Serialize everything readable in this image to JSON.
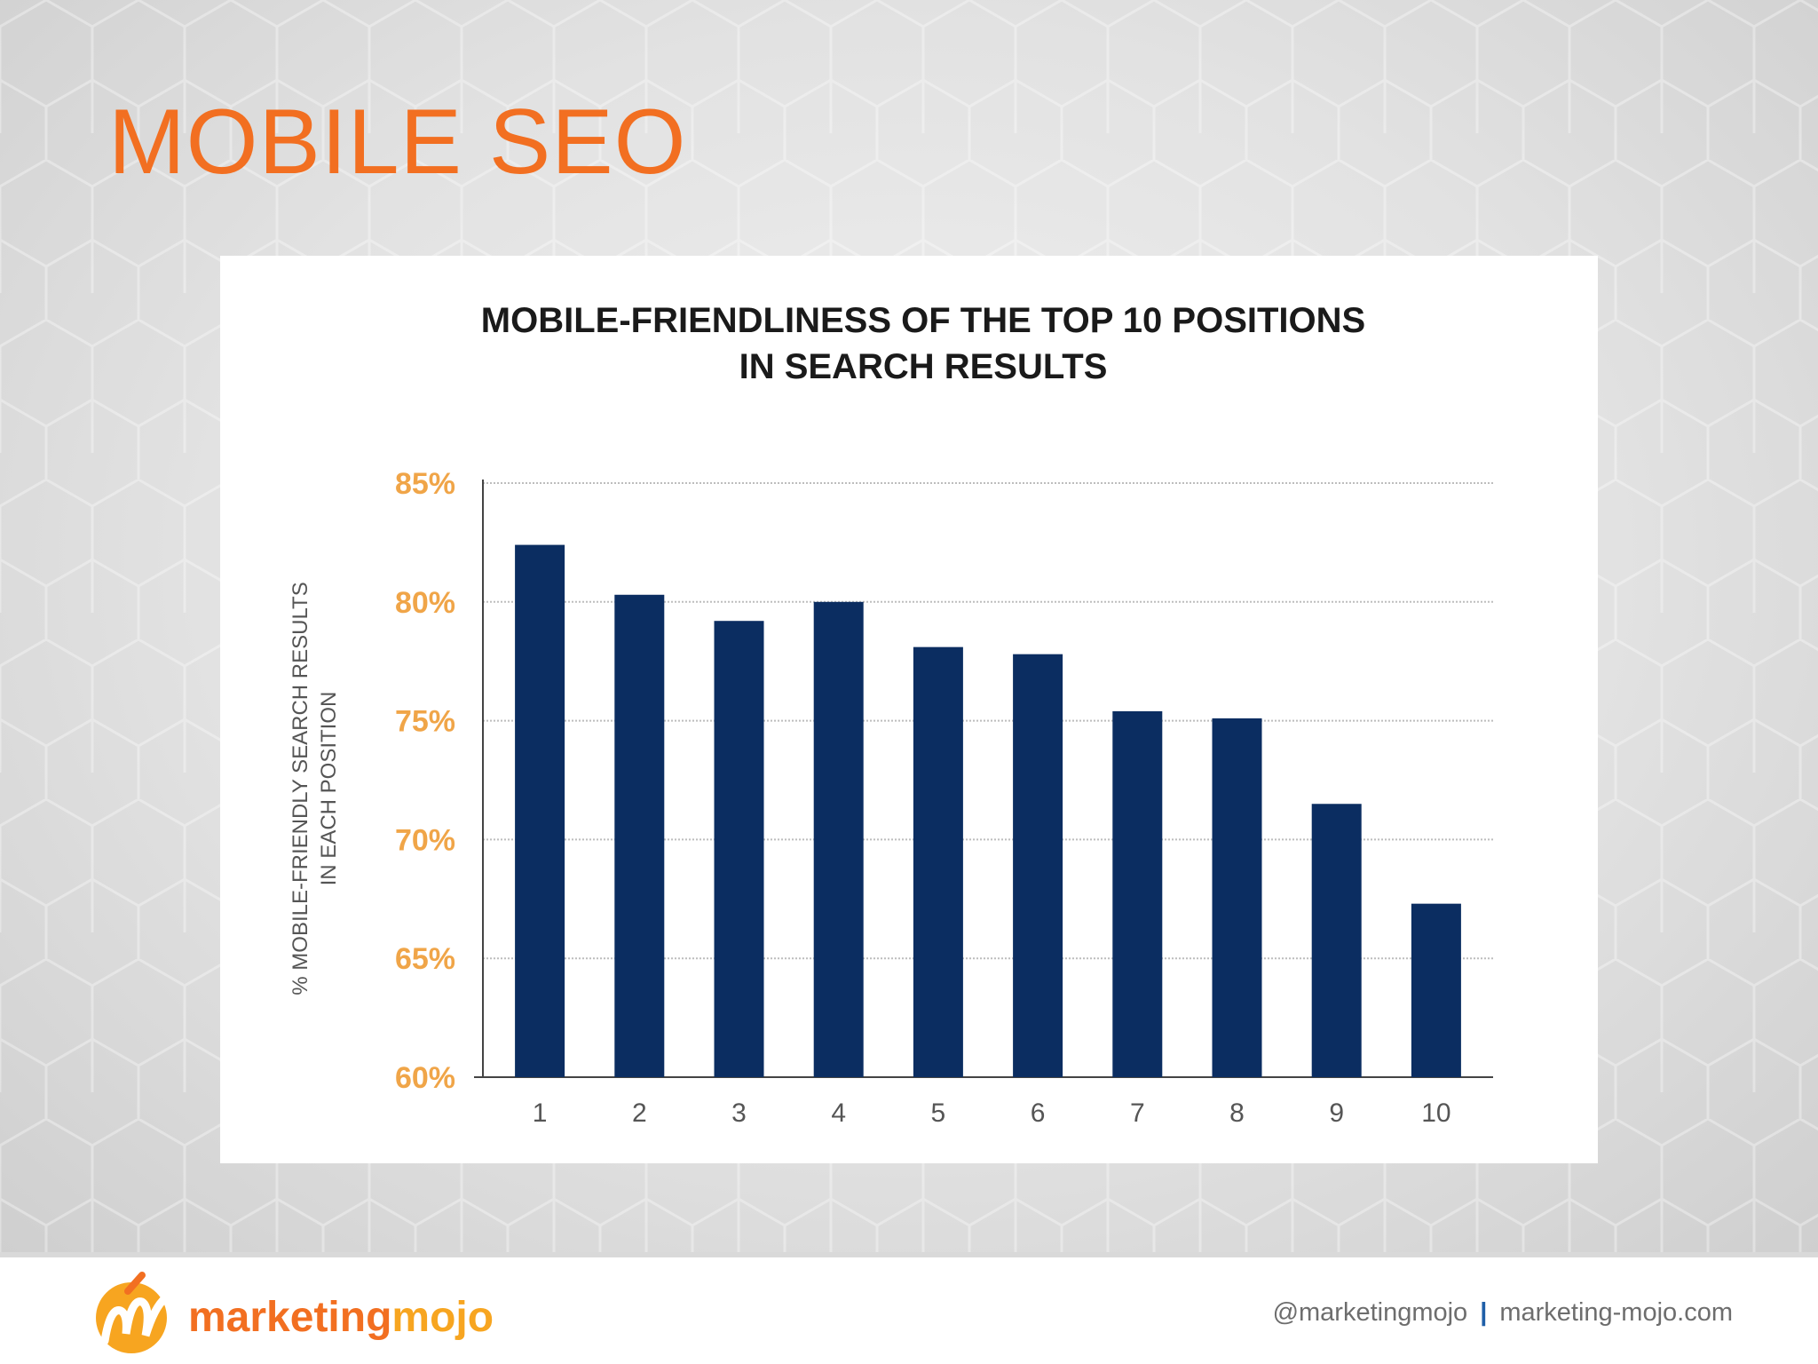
{
  "slide": {
    "title": "MOBILE SEO"
  },
  "colors": {
    "accent": "#f26f21",
    "bar": "#0b2d61",
    "tick_label": "#f0a548"
  },
  "chart_data": {
    "type": "bar",
    "title_lines": [
      "MOBILE-FRIENDLINESS OF THE TOP 10 POSITIONS",
      "IN SEARCH RESULTS"
    ],
    "ylabel_lines": [
      "% MOBILE-FRIENDLY SEARCH RESULTS",
      "IN EACH POSITION"
    ],
    "xlabel": "",
    "categories": [
      "1",
      "2",
      "3",
      "4",
      "5",
      "6",
      "7",
      "8",
      "9",
      "10"
    ],
    "values": [
      82.4,
      80.3,
      79.2,
      80.0,
      78.1,
      77.8,
      75.4,
      75.1,
      71.5,
      67.3
    ],
    "ylim": [
      60,
      85
    ],
    "yticks": [
      60,
      65,
      70,
      75,
      80,
      85
    ],
    "ytick_labels": [
      "60%",
      "65%",
      "70%",
      "75%",
      "80%",
      "85%"
    ],
    "grid": true,
    "legend": "none"
  },
  "footer": {
    "logo_word_1": "marketing",
    "logo_word_2": "mojo",
    "handle": "@marketingmojo",
    "separator": "|",
    "website": "marketing-mojo.com"
  }
}
